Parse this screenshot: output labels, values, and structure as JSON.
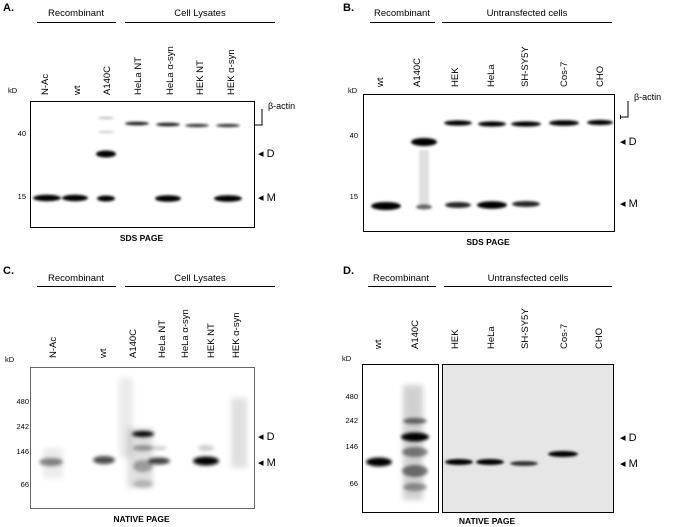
{
  "panels": [
    {
      "letter": "A.",
      "groups": [
        "Recombinant",
        "Cell Lysates"
      ],
      "lanes": [
        "N-Ac",
        "wt",
        "A140C",
        "HeLa NT",
        "HeLa α-syn",
        "HEK NT",
        "HEK α-syn"
      ],
      "kd": "kD",
      "mw": [
        "40",
        "15"
      ],
      "markers": [
        "β-actin",
        "D",
        "M"
      ],
      "caption": "SDS PAGE"
    },
    {
      "letter": "B.",
      "groups": [
        "Recombinant",
        "Untransfected cells"
      ],
      "lanes": [
        "wt",
        "A140C",
        "HEK",
        "HeLa",
        "SH-SY5Y",
        "Cos-7",
        "CHO"
      ],
      "kd": "kD",
      "mw": [
        "40",
        "15"
      ],
      "markers": [
        "β-actin",
        "D",
        "M"
      ],
      "caption": "SDS PAGE"
    },
    {
      "letter": "C.",
      "groups": [
        "Recombinant",
        "Cell Lysates"
      ],
      "lanes": [
        "N-Ac",
        "wt",
        "A140C",
        "HeLa NT",
        "HeLa α-syn",
        "HEK  NT",
        "HEK α-syn"
      ],
      "kd": "kD",
      "mw": [
        "480",
        "242",
        "146",
        "66"
      ],
      "markers": [
        "D",
        "M"
      ],
      "caption": "NATIVE PAGE"
    },
    {
      "letter": "D.",
      "groups": [
        "Recombinant",
        "Untransfected cells"
      ],
      "lanes": [
        "wt",
        "A140C",
        "HEK",
        "HeLa",
        "SH-SY5Y",
        "Cos-7",
        "CHO"
      ],
      "kd": "kD",
      "mw": [
        "480",
        "242",
        "146",
        "66"
      ],
      "markers": [
        "D",
        "M"
      ],
      "caption": "NATIVE PAGE"
    }
  ]
}
